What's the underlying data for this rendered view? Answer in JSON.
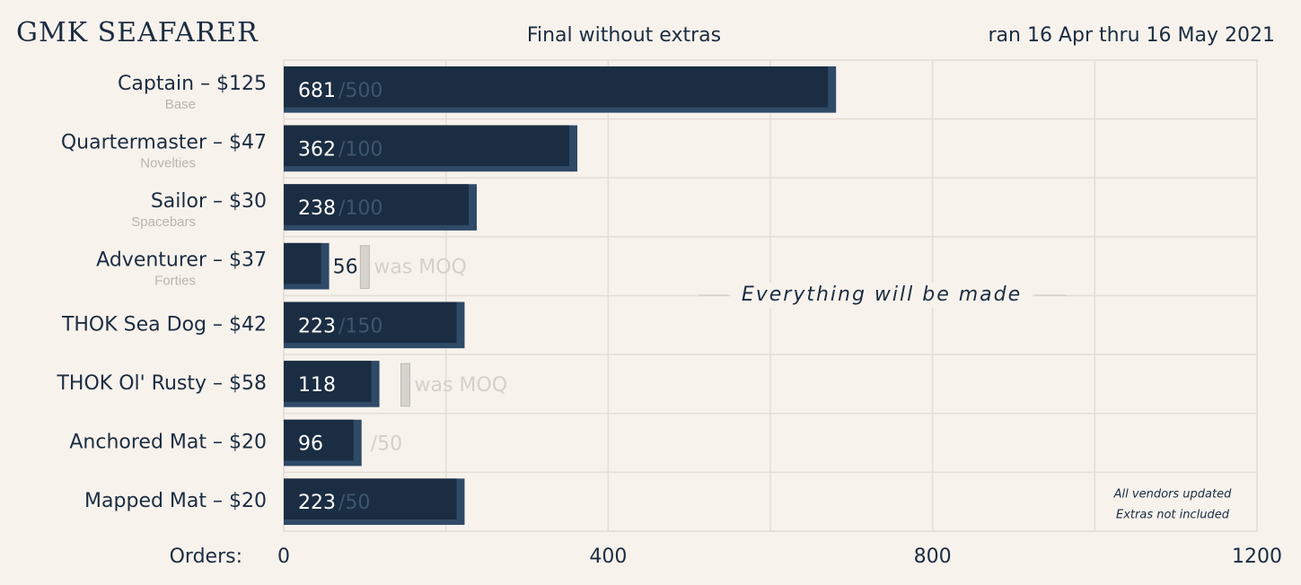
{
  "chart_data": {
    "type": "bar",
    "orientation": "horizontal",
    "title": "GMK SEAFARER",
    "subtitle": "Final without extras",
    "date_range": "ran 16 Apr thru 16 May 2021",
    "categories": [
      "Captain – $125",
      "Quartermaster – $47",
      "Sailor – $30",
      "Adventurer – $37",
      "THOK Sea Dog – $42",
      "THOK Ol' Rusty – $58",
      "Anchored Mat – $20",
      "Mapped Mat – $20"
    ],
    "category_sublabels": [
      "Base",
      "Novelties",
      "Spacebars",
      "Forties",
      null,
      null,
      null,
      null
    ],
    "values": [
      681,
      362,
      238,
      56,
      223,
      118,
      96,
      223
    ],
    "color": "#1b2d42",
    "moq": [
      500,
      100,
      100,
      100,
      150,
      150,
      50,
      50
    ],
    "moq_labels": [
      "/500",
      "/100",
      "/100",
      "was MOQ",
      "/150",
      "was MOQ",
      "/50",
      "/50"
    ],
    "xlabel": "Orders:",
    "xlim": [
      0,
      1200
    ],
    "xticks": [
      0,
      400,
      800,
      1200
    ],
    "xgrid": [
      0,
      200,
      400,
      600,
      800,
      1000,
      1200
    ],
    "annotation": "Everything will be made",
    "notes": [
      "All vendors updated",
      "Extras not included"
    ]
  }
}
